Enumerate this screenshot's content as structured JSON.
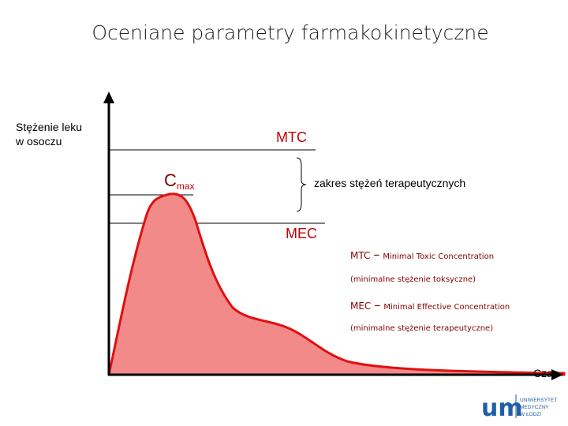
{
  "title": "Oceniane parametry farmakokinetyczne",
  "axes": {
    "y_label": [
      "Stężenie leku",
      "w osoczu"
    ],
    "x_label": "Czas"
  },
  "labels": {
    "mtc": "MTC",
    "cmax": {
      "main": "C",
      "sub": "max"
    },
    "range": "zakres stężeń terapeutycznych",
    "mec": "MEC"
  },
  "legend": [
    {
      "abbr": "MTC",
      "dash": "–",
      "name": "Minimal Toxic Concentration",
      "translation": "(minimalne stężenie toksyczne)"
    },
    {
      "abbr": "MEC",
      "dash": "–",
      "name": "Minimal Effective Concentration",
      "translation": "(minimalne stężenie terapeutyczne)"
    }
  ],
  "logo": {
    "mark": "um",
    "text": [
      "UNIWERSYTET",
      "MEDYCZNY",
      "W ŁODZI"
    ]
  }
}
